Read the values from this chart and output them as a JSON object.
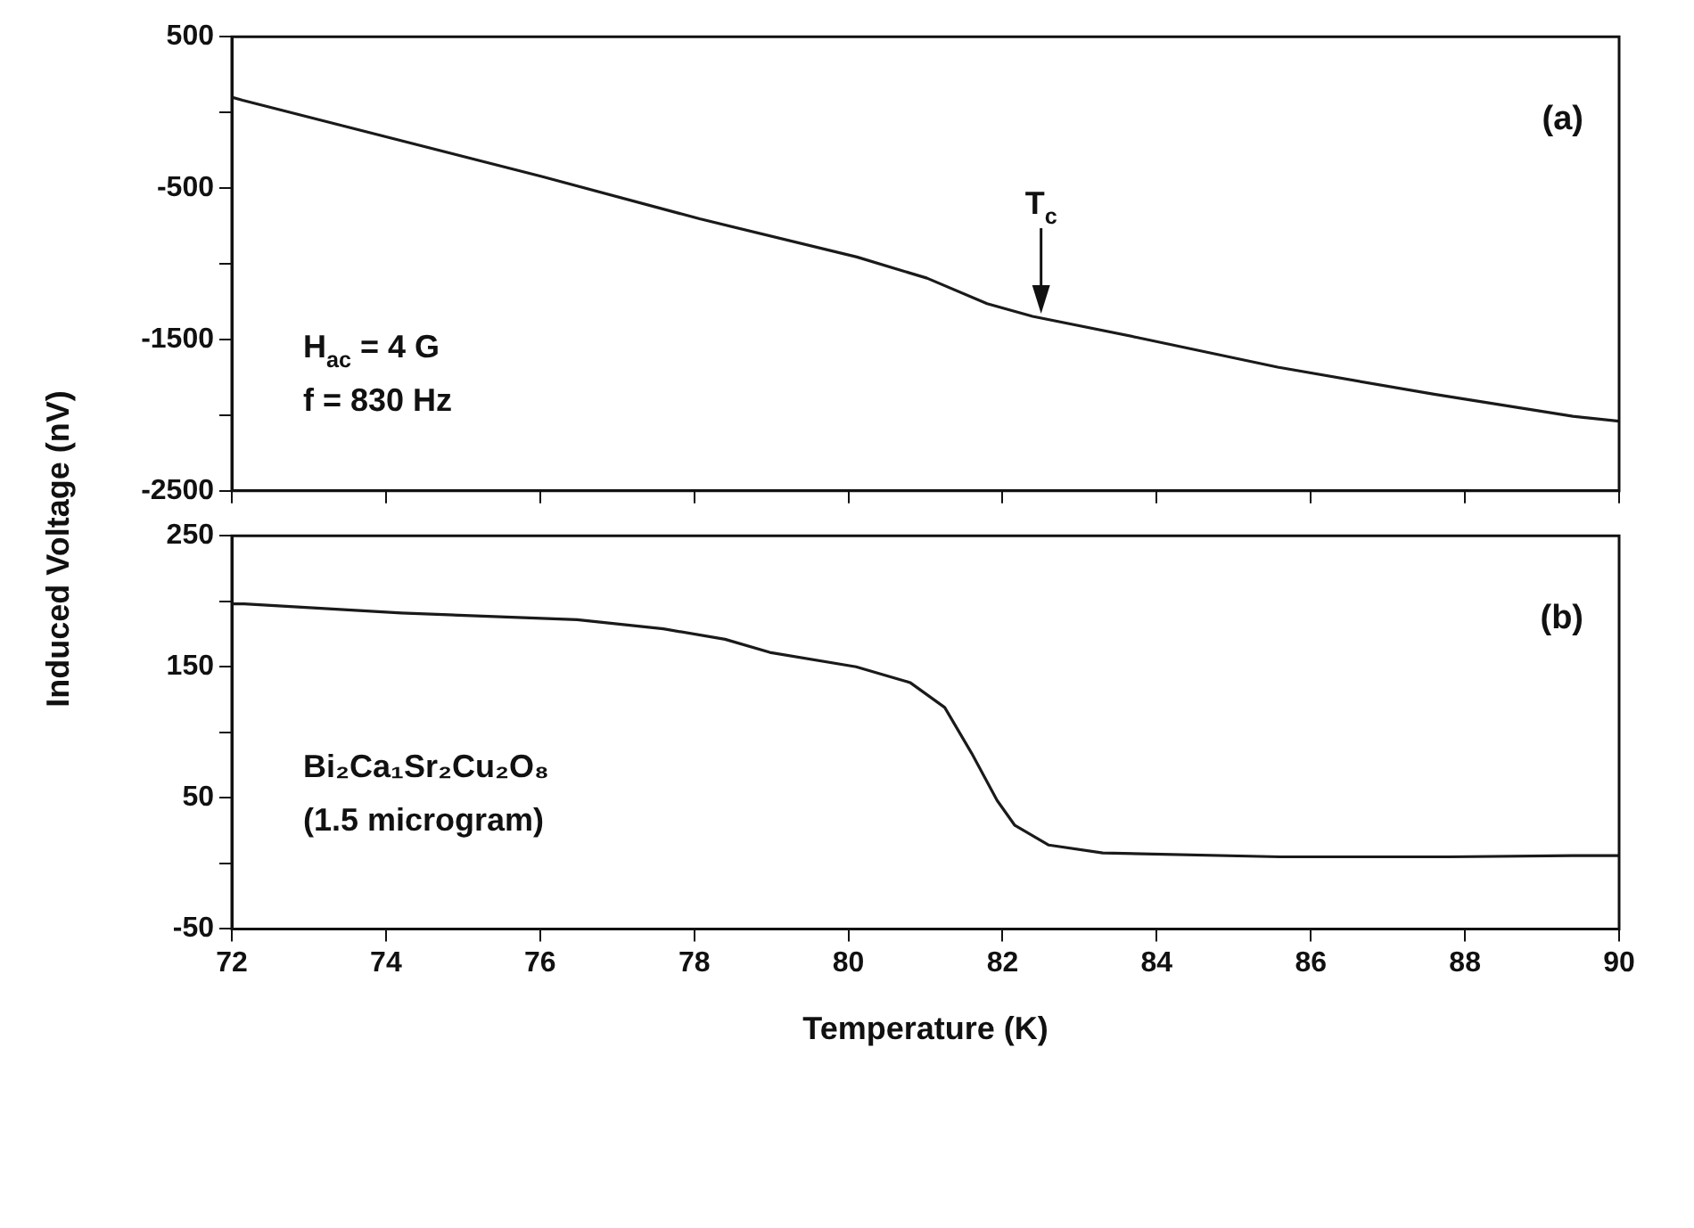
{
  "chart_data": [
    {
      "type": "line",
      "ylabel": "Induced Voltage (nV)",
      "x": [
        72,
        72.14,
        76.02,
        78.07,
        80.11,
        81.02,
        81.8,
        82.39,
        83.75,
        85.57,
        87.6,
        89.4,
        90
      ],
      "series": [
        {
          "color": "#1a1a1a",
          "values": [
            100,
            80,
            -423,
            -703,
            -955,
            -1095,
            -1263,
            -1347,
            -1487,
            -1683,
            -1862,
            -2007,
            -2040
          ]
        }
      ],
      "xlim": [
        72,
        90
      ],
      "xticks": [
        72,
        74,
        76,
        78,
        80,
        82,
        84,
        86,
        88,
        90
      ],
      "ylim": [
        -2500,
        500
      ],
      "yticks": [
        -2500,
        {
          "value": -2000,
          "label": null
        },
        -1500,
        {
          "value": -1000,
          "label": null
        },
        -500,
        {
          "value": 0,
          "label": null
        },
        500
      ],
      "tick_labels": "y",
      "grid": false,
      "legend": false,
      "marker": "none",
      "line_style": "solid",
      "annotations": [
        "(a)",
        {
          "text": "T$_{c}$",
          "x": 82.5,
          "y": -1330
        },
        "H$_{ac}$ = 4 G",
        "f = 830 Hz"
      ]
    },
    {
      "type": "line",
      "xlabel": "Temperature (K)",
      "x": [
        72,
        72.16,
        74.2,
        76.48,
        77.6,
        78.4,
        78.98,
        80.1,
        80.8,
        81.25,
        81.6,
        81.93,
        82.16,
        82.6,
        83.3,
        85.6,
        87.8,
        89.4,
        90
      ],
      "series": [
        {
          "color": "#1a1a1a",
          "values": [
            198,
            198,
            191,
            186,
            179,
            171,
            161,
            150,
            138,
            119,
            84,
            48,
            29,
            14,
            8,
            5,
            5,
            6,
            6
          ]
        }
      ],
      "xlim": [
        72,
        90
      ],
      "xticks": [
        72,
        74,
        76,
        78,
        80,
        82,
        84,
        86,
        88,
        90
      ],
      "ylim": [
        -50,
        250
      ],
      "yticks": [
        -50,
        {
          "value": 0,
          "label": null
        },
        50,
        {
          "value": 100,
          "label": null
        },
        150,
        {
          "value": 200,
          "label": null
        },
        250
      ],
      "grid": false,
      "legend": false,
      "marker": "none",
      "line_style": "solid",
      "annotations": [
        "(b)",
        "Bi₂Ca₁Sr₂Cu₂O₈",
        "(1.5 microgram)"
      ]
    }
  ]
}
